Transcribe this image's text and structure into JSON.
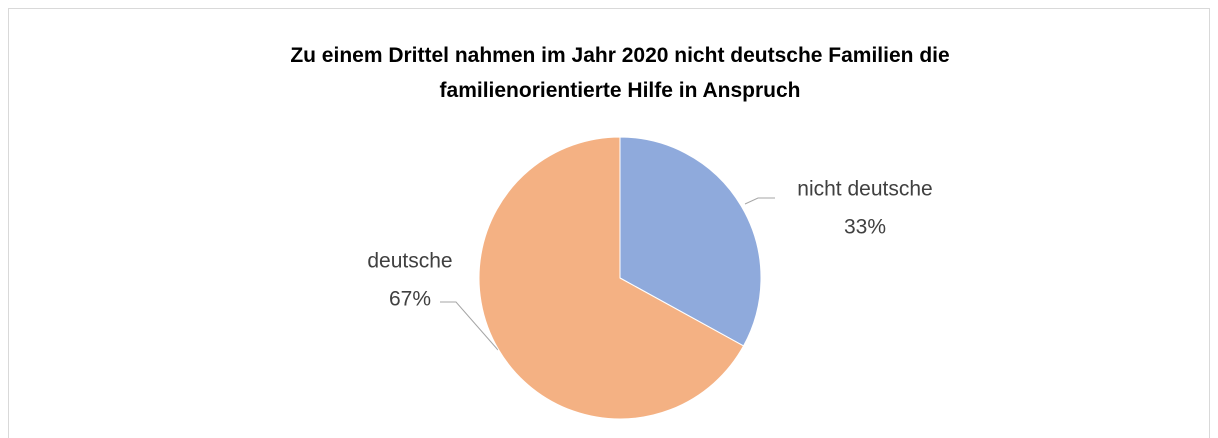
{
  "chart_data": {
    "type": "pie",
    "title": "Zu einem Drittel nahmen im Jahr 2020 nicht deutsche Familien die familienorientierte Hilfe in Anspruch",
    "categories": [
      "nicht deutsche",
      "deutsche"
    ],
    "values": [
      33,
      67
    ],
    "value_labels": [
      "33%",
      "67%"
    ],
    "colors": [
      "#8faadc",
      "#f4b183"
    ]
  }
}
